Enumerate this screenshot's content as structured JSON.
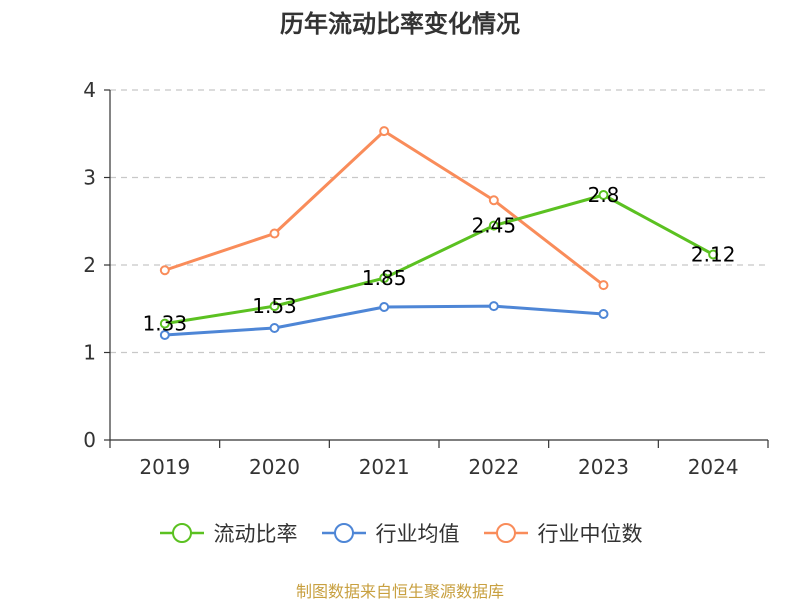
{
  "chart_data": {
    "type": "line",
    "title": "历年流动比率变化情况",
    "categories": [
      "2019",
      "2020",
      "2021",
      "2022",
      "2023",
      "2024"
    ],
    "y_ticks": [
      "0",
      "1",
      "2",
      "3",
      "4"
    ],
    "ylim": [
      0,
      4
    ],
    "grid": true,
    "legend_position": "bottom",
    "series": [
      {
        "name": "流动比率",
        "color": "#5bc121",
        "values": [
          1.33,
          1.53,
          1.85,
          2.45,
          2.8,
          2.12
        ],
        "labels": [
          "1.33",
          "1.53",
          "1.85",
          "2.45",
          "2.8",
          "2.12"
        ]
      },
      {
        "name": "行业均值",
        "color": "#4e86d6",
        "values": [
          1.2,
          1.28,
          1.52,
          1.53,
          1.44,
          null
        ]
      },
      {
        "name": "行业中位数",
        "color": "#f98c5a",
        "values": [
          1.94,
          2.36,
          3.53,
          2.74,
          1.77,
          null
        ]
      }
    ],
    "source": "制图数据来自恒生聚源数据库"
  }
}
